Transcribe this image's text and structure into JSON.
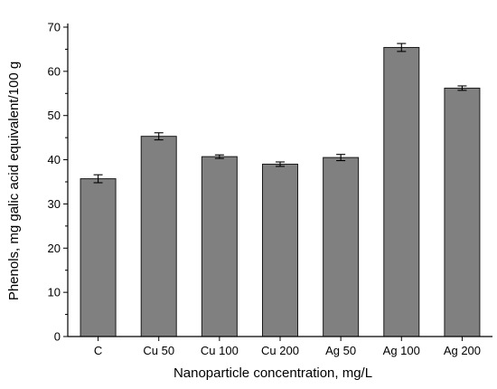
{
  "chart_data": {
    "type": "bar",
    "categories": [
      "C",
      "Cu 50",
      "Cu 100",
      "Cu 200",
      "Ag 50",
      "Ag 100",
      "Ag 200"
    ],
    "values": [
      35.7,
      45.3,
      40.7,
      39.0,
      40.5,
      65.4,
      56.2
    ],
    "errors": [
      0.9,
      0.8,
      0.4,
      0.5,
      0.7,
      0.9,
      0.5
    ],
    "xlabel": "Nanoparticle concentration, mg/L",
    "ylabel": "Phenols, mg galic acid equivalent/100 g",
    "ylim": [
      0,
      70
    ],
    "yticks": [
      0,
      10,
      20,
      30,
      40,
      50,
      60,
      70
    ],
    "grid": false,
    "colors": {
      "bar": "#808080",
      "bar_edge": "#1a1a1a",
      "axis": "#000000"
    }
  }
}
